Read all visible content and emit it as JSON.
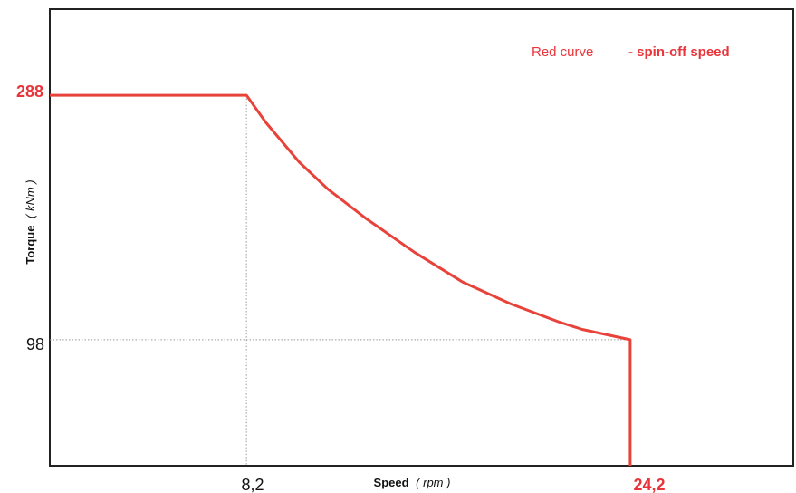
{
  "chart_data": {
    "type": "line",
    "xlabel": "Speed",
    "xlabel_unit": "( rpm )",
    "ylabel": "Torque",
    "ylabel_unit": "( kNm )",
    "legend": {
      "label": "Red curve",
      "description": "- spin-off speed",
      "placement": "top-right"
    },
    "x_ticks": [
      "8,2",
      "24,2"
    ],
    "y_ticks": [
      "288",
      "98"
    ],
    "xlim": [
      0,
      31
    ],
    "ylim": [
      0,
      355
    ],
    "grid": false,
    "reference_lines": [
      {
        "axis": "x",
        "value": 8.2
      },
      {
        "axis": "y",
        "value": 98
      }
    ],
    "series": [
      {
        "color": "#e8433a",
        "x": [
          0,
          8.2,
          9.0,
          10.4,
          11.6,
          13.2,
          15.2,
          17.2,
          19.2,
          21.2,
          22.2,
          24.2,
          24.2
        ],
        "y": [
          288,
          288,
          267,
          236,
          215,
          192,
          166,
          143,
          126,
          112,
          106,
          98,
          0
        ]
      }
    ]
  },
  "colors": {
    "accent_red": "#e8343a",
    "curve": "#e8433a",
    "frame": "#222222",
    "reference_line": "#999999"
  }
}
